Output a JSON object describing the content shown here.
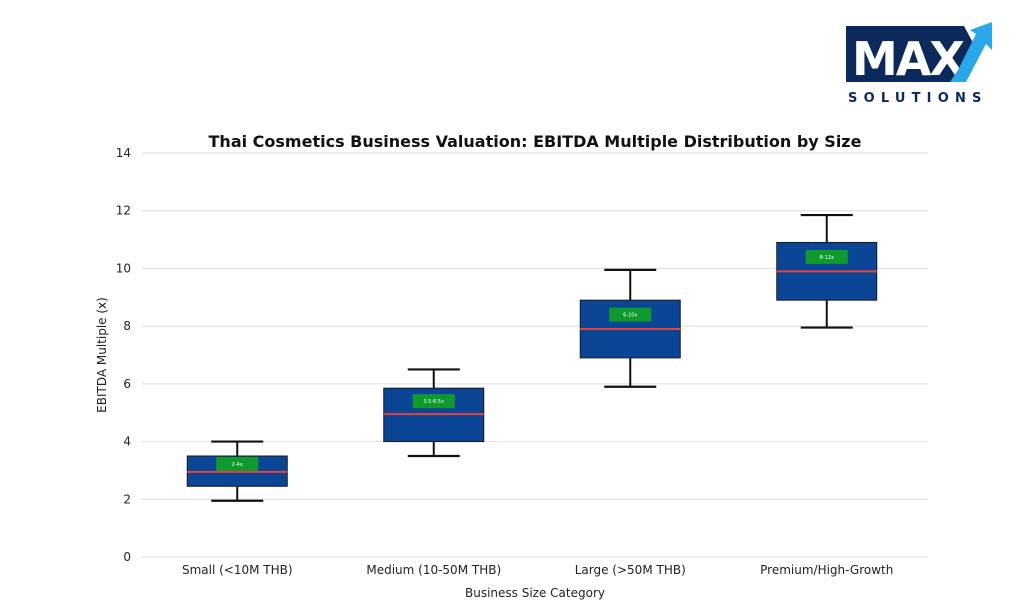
{
  "logo": {
    "main": "MAX",
    "sub": "SOLUTIONS",
    "colors": {
      "navy": "#0b2a5b",
      "accent": "#2aa7e8"
    }
  },
  "chart_data": {
    "type": "boxplot",
    "title": "Thai Cosmetics Business Valuation: EBITDA Multiple Distribution by Size",
    "xlabel": "Business Size Category",
    "ylabel": "EBITDA Multiple (x)",
    "ylim": [
      0,
      14
    ],
    "yticks": [
      0,
      2,
      4,
      6,
      8,
      10,
      12,
      14
    ],
    "grid": true,
    "categories": [
      "Small (<10M THB)",
      "Medium (10-50M THB)",
      "Large (>50M THB)",
      "Premium/High-Growth"
    ],
    "boxes": [
      {
        "category": "Small (<10M THB)",
        "whisker_low": 1.95,
        "q1": 2.45,
        "median": 2.95,
        "q3": 3.5,
        "whisker_high": 4.0,
        "range_label": "2-4x"
      },
      {
        "category": "Medium (10-50M THB)",
        "whisker_low": 3.5,
        "q1": 4.0,
        "median": 4.95,
        "q3": 5.85,
        "whisker_high": 6.5,
        "range_label": "3.5-6.5x"
      },
      {
        "category": "Large (>50M THB)",
        "whisker_low": 5.9,
        "q1": 6.9,
        "median": 7.9,
        "q3": 8.9,
        "whisker_high": 9.95,
        "range_label": "6-10x"
      },
      {
        "category": "Premium/High-Growth",
        "whisker_low": 7.95,
        "q1": 8.9,
        "median": 9.9,
        "q3": 10.9,
        "whisker_high": 11.85,
        "range_label": "8-12x"
      }
    ],
    "colors": {
      "box": "#0a4596",
      "median": "#e8413c",
      "whisker": "#111111",
      "range_label_bg": "#0f9a2e",
      "grid": "#dddddd"
    }
  }
}
